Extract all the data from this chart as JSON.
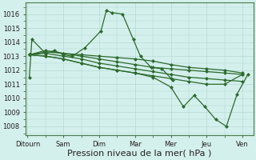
{
  "background_color": "#d4f0ec",
  "line_color": "#2d6a2d",
  "grid_color": "#aed4ce",
  "xlabel": "Pression niveau de la mer( hPa )",
  "xlabel_fontsize": 8,
  "ytick_labels": [
    1008,
    1009,
    1010,
    1011,
    1012,
    1013,
    1014,
    1015,
    1016
  ],
  "ylim": [
    1007.4,
    1016.8
  ],
  "xlim": [
    -0.05,
    6.3
  ],
  "xtick_labels": [
    "Ditourn",
    "Sam",
    "Dim",
    "Mar",
    "Mer",
    "Jeu",
    "Ven"
  ],
  "xtick_positions": [
    0,
    1,
    2,
    3,
    4,
    5,
    6
  ],
  "series1_x": [
    0.05,
    0.12,
    0.5,
    0.75,
    1.0,
    1.25,
    1.6,
    2.05,
    2.2,
    2.35,
    2.65,
    2.95,
    3.15,
    3.45,
    3.75,
    4.05
  ],
  "series1_y": [
    1011.5,
    1014.2,
    1013.2,
    1013.4,
    1013.1,
    1013.0,
    1013.6,
    1014.8,
    1016.25,
    1016.1,
    1016.0,
    1014.2,
    1013.0,
    1012.2,
    1012.1,
    1011.3
  ],
  "series2_x": [
    0.05,
    0.5,
    1.0,
    1.5,
    2.0,
    2.5,
    3.0,
    3.5,
    4.0,
    4.5,
    5.0,
    5.5,
    6.0
  ],
  "series2_y": [
    1013.1,
    1013.4,
    1013.2,
    1013.0,
    1012.8,
    1012.6,
    1012.4,
    1012.2,
    1012.1,
    1012.0,
    1011.9,
    1011.8,
    1011.7
  ],
  "series3_x": [
    0.05,
    0.5,
    1.0,
    1.5,
    2.0,
    2.5,
    3.0,
    3.5,
    4.0,
    4.5,
    5.0,
    5.5,
    6.0
  ],
  "series3_y": [
    1013.1,
    1013.3,
    1013.2,
    1013.1,
    1013.0,
    1012.9,
    1012.8,
    1012.65,
    1012.4,
    1012.2,
    1012.1,
    1012.0,
    1011.8
  ],
  "series4_x": [
    0.05,
    0.5,
    1.0,
    1.5,
    2.0,
    2.5,
    3.0,
    3.5,
    4.0,
    4.5,
    5.0,
    5.5,
    6.0
  ],
  "series4_y": [
    1013.1,
    1013.2,
    1013.0,
    1012.8,
    1012.5,
    1012.3,
    1012.1,
    1011.9,
    1011.7,
    1011.5,
    1011.4,
    1011.3,
    1011.2
  ],
  "series5_x": [
    0.05,
    0.5,
    1.0,
    1.5,
    2.0,
    2.5,
    3.0,
    3.5,
    4.0,
    4.5,
    5.0,
    5.5,
    6.0
  ],
  "series5_y": [
    1013.1,
    1013.0,
    1012.8,
    1012.5,
    1012.2,
    1012.0,
    1011.8,
    1011.6,
    1011.4,
    1011.2,
    1011.0,
    1011.0,
    1011.7
  ],
  "series6_x": [
    0.05,
    0.5,
    1.0,
    1.5,
    2.0,
    2.5,
    3.0,
    3.5,
    4.0,
    4.35,
    4.65,
    4.95,
    5.25,
    5.55,
    5.85,
    6.15
  ],
  "series6_y": [
    1013.1,
    1013.0,
    1012.8,
    1012.5,
    1012.2,
    1012.0,
    1011.8,
    1011.5,
    1010.8,
    1009.4,
    1010.2,
    1009.4,
    1008.5,
    1008.0,
    1010.3,
    1011.7
  ]
}
